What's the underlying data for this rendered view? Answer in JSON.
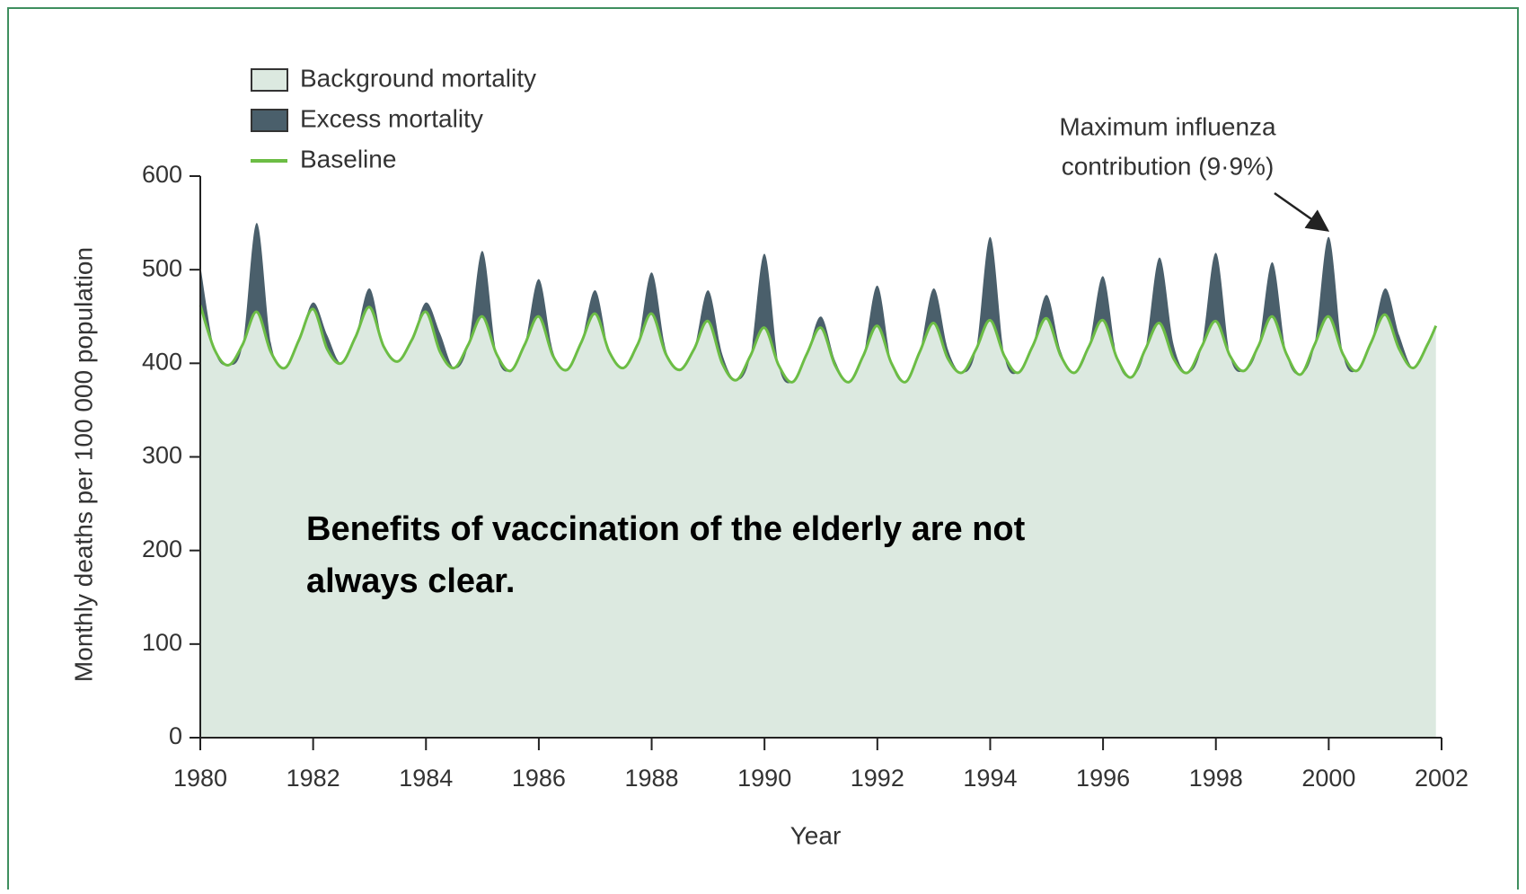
{
  "chart_data": {
    "type": "area",
    "xlabel": "Year",
    "ylabel": "Monthly deaths per 100 000 population",
    "annotation": [
      "Maximum influenza",
      "contribution (9·9%)"
    ],
    "overlay_text": [
      "Benefits of vaccination of the elderly are not",
      "always clear."
    ],
    "xlim": [
      1980,
      2002
    ],
    "xticks": [
      1980,
      1982,
      1984,
      1986,
      1988,
      1990,
      1992,
      1994,
      1996,
      1998,
      2000,
      2002
    ],
    "ylim": [
      0,
      600
    ],
    "yticks": [
      0,
      100,
      200,
      300,
      400,
      500,
      600
    ],
    "x": [
      1980,
      1980.25,
      1980.5,
      1980.75,
      1981,
      1981.25,
      1981.5,
      1981.75,
      1982,
      1982.25,
      1982.5,
      1982.75,
      1983,
      1983.25,
      1983.5,
      1983.75,
      1984,
      1984.25,
      1984.5,
      1984.75,
      1985,
      1985.25,
      1985.5,
      1985.75,
      1986,
      1986.25,
      1986.5,
      1986.75,
      1987,
      1987.25,
      1987.5,
      1987.75,
      1988,
      1988.25,
      1988.5,
      1988.75,
      1989,
      1989.25,
      1989.5,
      1989.75,
      1990,
      1990.25,
      1990.5,
      1990.75,
      1991,
      1991.25,
      1991.5,
      1991.75,
      1992,
      1992.25,
      1992.5,
      1992.75,
      1993,
      1993.25,
      1993.5,
      1993.75,
      1994,
      1994.25,
      1994.5,
      1994.75,
      1995,
      1995.25,
      1995.5,
      1995.75,
      1996,
      1996.25,
      1996.5,
      1996.75,
      1997,
      1997.25,
      1997.5,
      1997.75,
      1998,
      1998.25,
      1998.5,
      1998.75,
      1999,
      1999.25,
      1999.5,
      1999.75,
      2000,
      2000.25,
      2000.5,
      2000.75,
      2001,
      2001.25,
      2001.5,
      2001.75,
      2001.9
    ],
    "series": [
      {
        "name": "Background mortality",
        "color": "#dce9e0",
        "role": "area",
        "values": [
          462,
          415,
          398,
          420,
          455,
          412,
          395,
          425,
          458,
          415,
          400,
          428,
          460,
          418,
          402,
          425,
          455,
          412,
          395,
          420,
          450,
          410,
          392,
          420,
          450,
          408,
          393,
          422,
          453,
          412,
          395,
          420,
          453,
          410,
          393,
          415,
          445,
          400,
          382,
          408,
          438,
          398,
          380,
          410,
          438,
          398,
          380,
          408,
          440,
          400,
          380,
          412,
          443,
          405,
          390,
          415,
          446,
          408,
          390,
          418,
          448,
          408,
          390,
          418,
          446,
          405,
          385,
          415,
          443,
          405,
          390,
          418,
          445,
          408,
          392,
          418,
          450,
          410,
          388,
          420,
          450,
          410,
          392,
          422,
          452,
          415,
          395,
          420,
          440
        ]
      },
      {
        "name": "Excess mortality",
        "color": "#4a5f6b",
        "role": "stacked",
        "values": [
          43,
          0,
          0,
          0,
          95,
          10,
          0,
          0,
          7,
          15,
          0,
          0,
          20,
          0,
          0,
          0,
          10,
          20,
          0,
          0,
          70,
          0,
          0,
          0,
          40,
          5,
          0,
          0,
          25,
          0,
          0,
          0,
          44,
          5,
          0,
          0,
          33,
          10,
          0,
          0,
          79,
          0,
          0,
          0,
          12,
          5,
          0,
          0,
          43,
          0,
          0,
          0,
          37,
          10,
          0,
          0,
          89,
          0,
          0,
          0,
          25,
          5,
          0,
          0,
          47,
          0,
          0,
          0,
          70,
          15,
          0,
          0,
          73,
          0,
          0,
          0,
          58,
          0,
          0,
          0,
          85,
          0,
          0,
          0,
          28,
          15,
          0,
          0,
          0
        ]
      },
      {
        "name": "Baseline",
        "color": "#6cbd45",
        "role": "line",
        "values": [
          462,
          415,
          398,
          420,
          455,
          412,
          395,
          425,
          458,
          415,
          400,
          428,
          460,
          418,
          402,
          425,
          455,
          412,
          395,
          420,
          450,
          410,
          392,
          420,
          450,
          408,
          393,
          422,
          453,
          412,
          395,
          420,
          453,
          410,
          393,
          415,
          445,
          400,
          382,
          408,
          438,
          398,
          380,
          410,
          438,
          398,
          380,
          408,
          440,
          400,
          380,
          412,
          443,
          405,
          390,
          415,
          446,
          408,
          390,
          418,
          448,
          408,
          390,
          418,
          446,
          405,
          385,
          415,
          443,
          405,
          390,
          418,
          445,
          408,
          392,
          418,
          450,
          410,
          388,
          420,
          450,
          410,
          392,
          422,
          452,
          415,
          395,
          420,
          440
        ]
      }
    ]
  }
}
